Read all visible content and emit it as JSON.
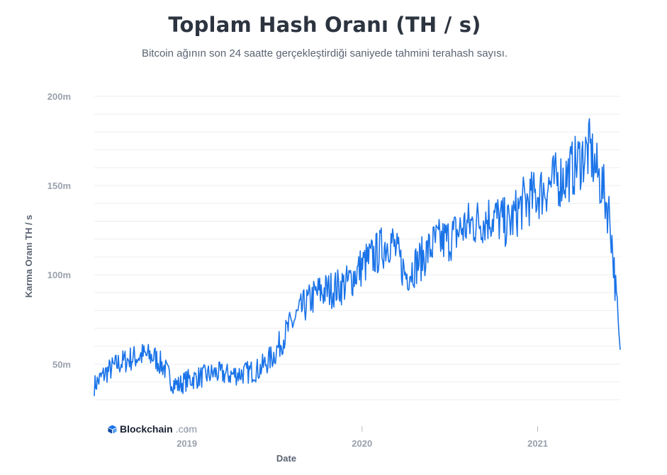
{
  "title": "Toplam Hash Oranı (TH / s)",
  "subtitle": "Bitcoin ağının son 24 saatte gerçekleştirdiği saniyede tahmini terahash sayısı.",
  "brand": {
    "name": "Blockchain",
    "suffix": ".com"
  },
  "colors": {
    "line": "#1a73e8",
    "grid": "#eceef1",
    "tick_label": "#9aa1ad",
    "axis_title": "#5b6472"
  },
  "chart_data": {
    "type": "line",
    "title": "Toplam Hash Oranı (TH / s)",
    "subtitle": "Bitcoin ağının son 24 saatte gerçekleştirdiği saniyede tahmini terahash sayısı.",
    "xlabel": "Date",
    "ylabel": "Karma Oranı TH / s",
    "xlim": [
      "2018-06-22",
      "2021-06-22"
    ],
    "ylim": [
      20,
      200
    ],
    "y_ticks": [
      {
        "value": 50,
        "label": "50m"
      },
      {
        "value": 100,
        "label": "100m"
      },
      {
        "value": 150,
        "label": "150m"
      },
      {
        "value": 200,
        "label": "200m"
      }
    ],
    "x_ticks": [
      {
        "value": "2019-01-01",
        "label": "2019"
      },
      {
        "value": "2020-01-01",
        "label": "2020"
      },
      {
        "value": "2021-01-01",
        "label": "2021"
      }
    ],
    "grid": true,
    "series": [
      {
        "x": [
          "2018-06-22",
          "2018-07-15",
          "2018-08-10",
          "2018-09-05",
          "2018-10-01",
          "2018-10-25",
          "2018-11-15",
          "2018-12-01",
          "2018-12-15",
          "2019-01-01",
          "2019-02-01",
          "2019-03-01",
          "2019-04-01",
          "2019-05-01",
          "2019-06-01",
          "2019-07-01",
          "2019-08-01",
          "2019-09-01",
          "2019-10-01",
          "2019-11-01",
          "2019-12-01",
          "2020-01-01",
          "2020-02-01",
          "2020-03-01",
          "2020-04-01",
          "2020-05-01",
          "2020-06-01",
          "2020-07-01",
          "2020-08-01",
          "2020-09-01",
          "2020-10-01",
          "2020-11-01",
          "2020-12-01",
          "2021-01-01",
          "2021-02-01",
          "2021-03-01",
          "2021-04-01",
          "2021-04-20",
          "2021-05-01",
          "2021-05-15",
          "2021-06-01",
          "2021-06-10",
          "2021-06-22"
        ],
        "y": [
          38,
          45,
          50,
          53,
          55,
          54,
          48,
          40,
          38,
          41,
          43,
          45,
          44,
          45,
          47,
          55,
          70,
          82,
          90,
          92,
          95,
          105,
          112,
          120,
          100,
          108,
          118,
          120,
          127,
          130,
          133,
          128,
          140,
          145,
          152,
          155,
          165,
          170,
          160,
          150,
          132,
          100,
          58
        ]
      }
    ]
  }
}
